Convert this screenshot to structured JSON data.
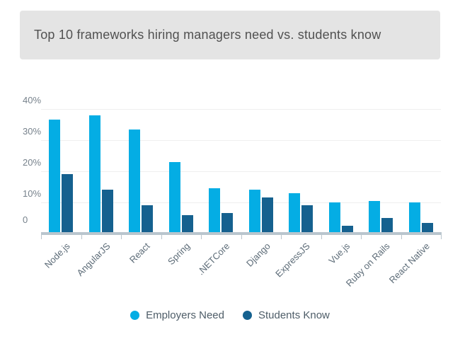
{
  "title_banner": {
    "text": "Top 10 frameworks hiring managers need vs. students know",
    "background": "#e4e4e4",
    "text_color": "#515151"
  },
  "chart_data": {
    "type": "bar",
    "title": "Top 10 frameworks hiring managers need vs. students know",
    "categories": [
      "Node.js",
      "AngularJS",
      "React",
      "Spring",
      ".NETCore",
      "Django",
      "ExpressJS",
      "Vue.js",
      "Ruby on Rails",
      "React Native"
    ],
    "series": [
      {
        "name": "Employers Need",
        "color": "#04ADE4",
        "values": [
          36.5,
          38,
          33.5,
          23,
          14.5,
          14,
          13,
          10,
          10.5,
          10
        ]
      },
      {
        "name": "Students Know",
        "color": "#15618F",
        "values": [
          19,
          14,
          9,
          6,
          6.5,
          11.5,
          9,
          2.5,
          5,
          3.5
        ]
      }
    ],
    "xlabel": "",
    "ylabel": "",
    "ylim": [
      0,
      44
    ],
    "y_axis": {
      "tick_values": [
        40,
        30,
        20,
        10,
        0
      ],
      "tick_labels": [
        "40%",
        "30%",
        "20%",
        "10%",
        "0"
      ]
    },
    "grid": true,
    "legend_position": "bottom"
  },
  "style": {
    "gridline_color": "#efefef",
    "axis_line_color": "#b9c5cd",
    "y_label_color": "#77828c",
    "x_label_color": "#5d6c78",
    "legend_text_color": "#4e5d68"
  }
}
